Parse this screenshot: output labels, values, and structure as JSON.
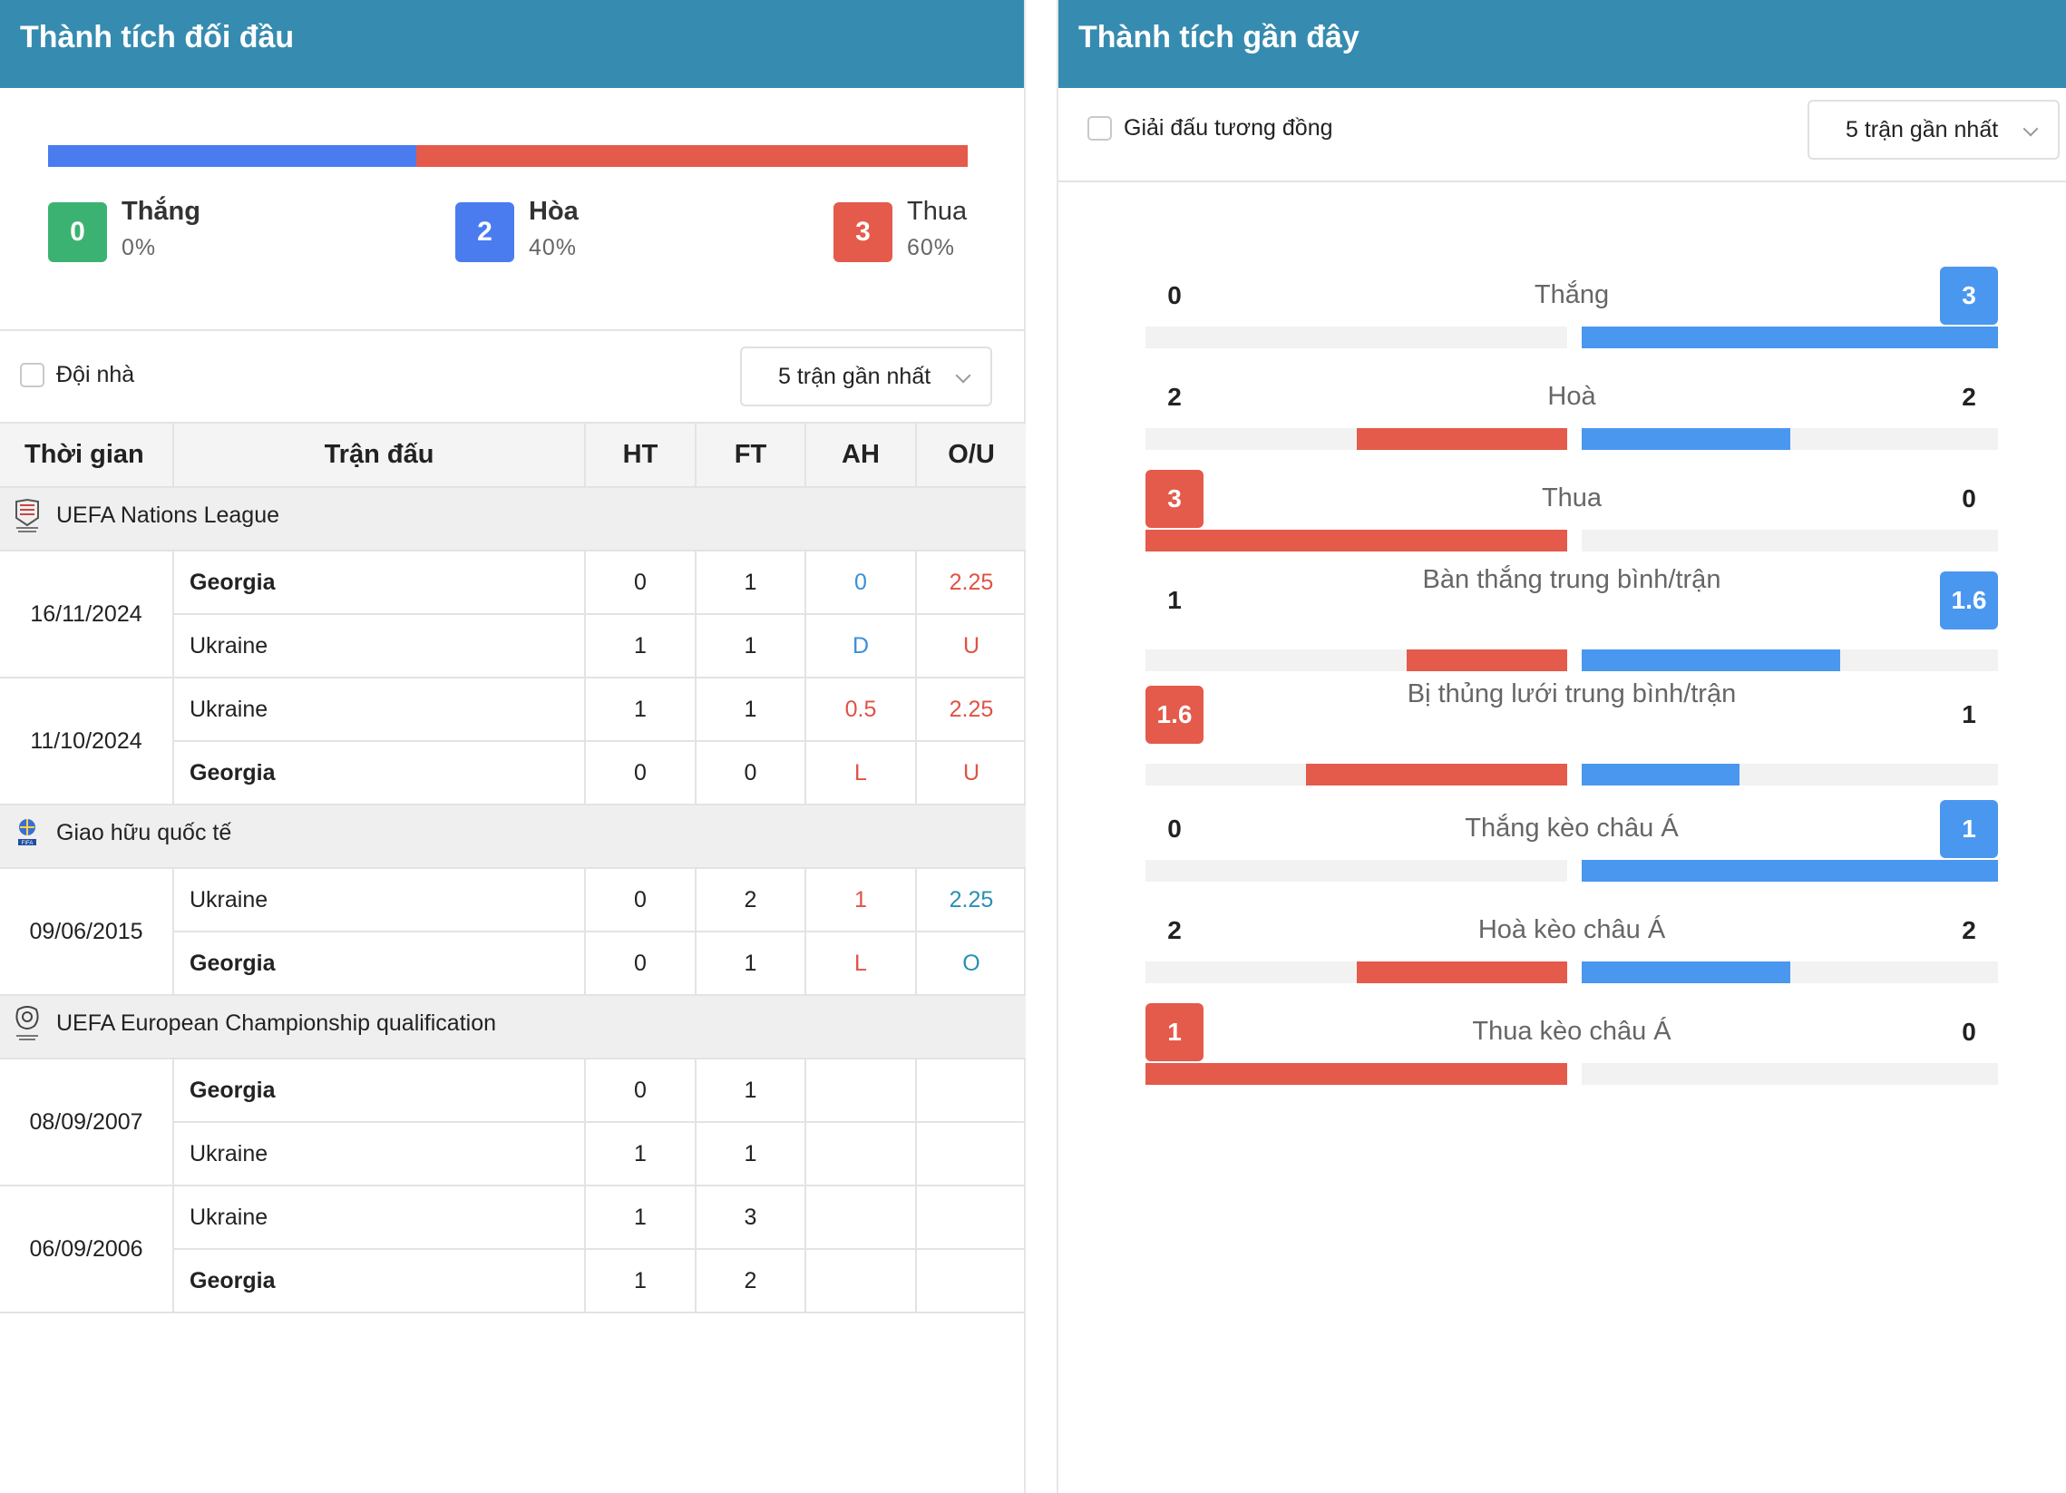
{
  "left_panel": {
    "title": "Thành tích đối đầu",
    "summary": {
      "win": {
        "count": "0",
        "label": "Thắng",
        "pct": "0%"
      },
      "draw": {
        "count": "2",
        "label": "Hòa",
        "pct": "40%"
      },
      "loss": {
        "count": "3",
        "label": "Thua",
        "pct": "60%"
      },
      "bar_share": {
        "win": 0,
        "draw": 0.4,
        "loss": 0.6
      }
    },
    "filter": {
      "home_label": "Đội nhà",
      "select_value": "5 trận gần nhất"
    },
    "table": {
      "headers": [
        "Thời gian",
        "Trận đấu",
        "HT",
        "FT",
        "AH",
        "O/U"
      ],
      "groups": [
        {
          "league": "UEFA Nations League",
          "matches": [
            {
              "date": "16/11/2024",
              "rows": [
                {
                  "team": "Georgia",
                  "bold": true,
                  "ht": "0",
                  "ft": "1",
                  "ah": "0",
                  "ah_color": "blue",
                  "ou": "2.25",
                  "ou_color": "red"
                },
                {
                  "team": "Ukraine",
                  "bold": false,
                  "ht": "1",
                  "ft": "1",
                  "ah": "D",
                  "ah_color": "blue",
                  "ou": "U",
                  "ou_color": "red"
                }
              ]
            },
            {
              "date": "11/10/2024",
              "rows": [
                {
                  "team": "Ukraine",
                  "bold": false,
                  "ht": "1",
                  "ft": "1",
                  "ah": "0.5",
                  "ah_color": "red",
                  "ou": "2.25",
                  "ou_color": "red"
                },
                {
                  "team": "Georgia",
                  "bold": true,
                  "ht": "0",
                  "ft": "0",
                  "ah": "L",
                  "ah_color": "red",
                  "ou": "U",
                  "ou_color": "red"
                }
              ]
            }
          ]
        },
        {
          "league": "Giao hữu quốc tế",
          "matches": [
            {
              "date": "09/06/2015",
              "rows": [
                {
                  "team": "Ukraine",
                  "bold": false,
                  "ht": "0",
                  "ft": "2",
                  "ah": "1",
                  "ah_color": "red",
                  "ou": "2.25",
                  "ou_color": "teal"
                },
                {
                  "team": "Georgia",
                  "bold": true,
                  "ht": "0",
                  "ft": "1",
                  "ah": "L",
                  "ah_color": "red",
                  "ou": "O",
                  "ou_color": "teal"
                }
              ]
            }
          ]
        },
        {
          "league": "UEFA European Championship qualification",
          "matches": [
            {
              "date": "08/09/2007",
              "rows": [
                {
                  "team": "Georgia",
                  "bold": true,
                  "ht": "0",
                  "ft": "1",
                  "ah": "",
                  "ah_color": "",
                  "ou": "",
                  "ou_color": ""
                },
                {
                  "team": "Ukraine",
                  "bold": false,
                  "ht": "1",
                  "ft": "1",
                  "ah": "",
                  "ah_color": "",
                  "ou": "",
                  "ou_color": ""
                }
              ]
            },
            {
              "date": "06/09/2006",
              "rows": [
                {
                  "team": "Ukraine",
                  "bold": false,
                  "ht": "1",
                  "ft": "3",
                  "ah": "",
                  "ah_color": "",
                  "ou": "",
                  "ou_color": ""
                },
                {
                  "team": "Georgia",
                  "bold": true,
                  "ht": "1",
                  "ft": "2",
                  "ah": "",
                  "ah_color": "",
                  "ou": "",
                  "ou_color": ""
                }
              ]
            }
          ]
        }
      ]
    }
  },
  "right_panel": {
    "title": "Thành tích gần đây",
    "filter": {
      "similar_label": "Giải đấu tương đồng",
      "select_value": "5 trận gần nhất"
    },
    "stats": [
      {
        "name": "Thắng",
        "left": "0",
        "right": "3",
        "left_share": 0,
        "right_share": 1,
        "highlight": "right"
      },
      {
        "name": "Hoà",
        "left": "2",
        "right": "2",
        "left_share": 0.5,
        "right_share": 0.5,
        "highlight": "none"
      },
      {
        "name": "Thua",
        "left": "3",
        "right": "0",
        "left_share": 1,
        "right_share": 0,
        "highlight": "left"
      },
      {
        "name": "Bàn thắng trung bình/trận",
        "left": "1",
        "right": "1.6",
        "left_share": 0.38,
        "right_share": 0.62,
        "highlight": "right"
      },
      {
        "name": "Bị thủng lưới trung bình/trận",
        "left": "1.6",
        "right": "1",
        "left_share": 0.62,
        "right_share": 0.38,
        "highlight": "left"
      },
      {
        "name": "Thắng kèo châu Á",
        "left": "0",
        "right": "1",
        "left_share": 0,
        "right_share": 1,
        "highlight": "right"
      },
      {
        "name": "Hoà kèo châu Á",
        "left": "2",
        "right": "2",
        "left_share": 0.5,
        "right_share": 0.5,
        "highlight": "none"
      },
      {
        "name": "Thua kèo châu Á",
        "left": "1",
        "right": "0",
        "left_share": 1,
        "right_share": 0,
        "highlight": "left"
      }
    ]
  },
  "colors": {
    "header": "#368bb0",
    "win": "#3cb272",
    "draw": "#4a7cf0",
    "loss": "#e45a4b",
    "stat_blue": "#4a97f0"
  }
}
